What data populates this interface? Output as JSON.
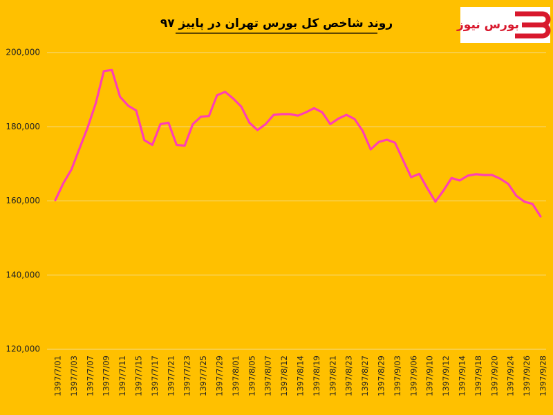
{
  "chart_data": {
    "type": "line",
    "title": "روند شاخص کل بورس تهران در پاییز ۹۷",
    "logo": "بورس نیوز",
    "categories": [
      "1397/7/01",
      null,
      "1397/7/03",
      null,
      "1397/7/07",
      null,
      "1397/7/09",
      null,
      "1397/7/11",
      null,
      "1397/7/15",
      null,
      "1397/7/17",
      null,
      "1397/7/21",
      null,
      "1397/7/23",
      null,
      "1397/7/25",
      null,
      "1397/7/29",
      null,
      "1397/8/01",
      null,
      "1397/8/05",
      null,
      "1397/8/07",
      null,
      "1397/8/12",
      null,
      "1397/8/14",
      null,
      "1397/8/19",
      null,
      "1397/8/21",
      null,
      "1397/8/23",
      null,
      "1397/8/27",
      null,
      "1397/8/29",
      null,
      "1397/9/03",
      null,
      "1397/9/06",
      null,
      "1397/9/10",
      null,
      "1397/9/12",
      null,
      "1397/9/14",
      null,
      "1397/9/18",
      null,
      "1397/9/20",
      null,
      "1397/9/24",
      null,
      "1397/9/26",
      null,
      "1397/9/28"
    ],
    "series": [
      {
        "name": "شاخص کل",
        "color": "#ff3fb4",
        "values": [
          160200,
          164800,
          168500,
          174200,
          179800,
          186300,
          195000,
          195300,
          188100,
          185700,
          184400,
          176400,
          175100,
          180700,
          181100,
          175100,
          174900,
          180700,
          182700,
          182900,
          188500,
          189400,
          187600,
          185400,
          181100,
          179100,
          180700,
          183200,
          183400,
          183400,
          183000,
          183900,
          185000,
          183900,
          180700,
          182200,
          183200,
          182100,
          178900,
          173900,
          175900,
          176500,
          175700,
          171000,
          166400,
          167300,
          163400,
          159800,
          162800,
          166200,
          165500,
          166800,
          167200,
          167000,
          167000,
          166000,
          164600,
          161400,
          159800,
          159200,
          155800
        ]
      }
    ],
    "ylim": [
      120000,
      200000
    ],
    "yticks": [
      {
        "value": 120000,
        "label": "120,000"
      },
      {
        "value": 140000,
        "label": "140,000"
      },
      {
        "value": 160000,
        "label": "160,000"
      },
      {
        "value": 180000,
        "label": "180,000"
      },
      {
        "value": 200000,
        "label": "200,000"
      }
    ],
    "grid": true
  }
}
